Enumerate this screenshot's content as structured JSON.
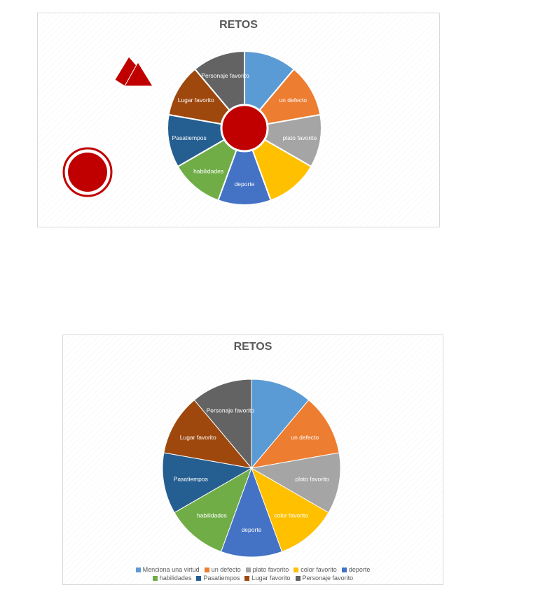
{
  "chart_data": [
    {
      "type": "pie",
      "variant": "wheel-with-center-disk",
      "title": "RETOS",
      "categories": [
        "Menciona una virtud",
        "un defecto",
        "plato favorito",
        "color favorito",
        "deporte",
        "habilidades",
        "Pasatiempos",
        "Lugar favorito",
        "Personaje favorito"
      ],
      "values": [
        1,
        1,
        1,
        1,
        1,
        1,
        1,
        1,
        1
      ],
      "slice_labels": [
        "",
        "un defecto",
        "plato favorito",
        "",
        "deporte",
        "habilidades",
        "Pasatiempos",
        "Lugar favorito",
        "Personaje favorito"
      ],
      "colors": [
        "#5b9bd5",
        "#ed7d31",
        "#a5a5a5",
        "#ffc000",
        "#4472c4",
        "#70ad47",
        "#255e91",
        "#9e480e",
        "#636363"
      ],
      "center_color": "#c00000",
      "decor_color": "#c00000",
      "legend": false
    },
    {
      "type": "pie",
      "title": "RETOS",
      "categories": [
        "Menciona una virtud",
        "un defecto",
        "plato favorito",
        "color favorito",
        "deporte",
        "habilidades",
        "Pasatiempos",
        "Lugar favorito",
        "Personaje favorito"
      ],
      "values": [
        1,
        1,
        1,
        1,
        1,
        1,
        1,
        1,
        1
      ],
      "slice_labels": [
        "",
        "un defecto",
        "plato favorito",
        "color favorito",
        "deporte",
        "habilidades",
        "Pasatiempos",
        "Lugar favorito",
        "Personaje favorito"
      ],
      "colors": [
        "#5b9bd5",
        "#ed7d31",
        "#a5a5a5",
        "#ffc000",
        "#4472c4",
        "#70ad47",
        "#255e91",
        "#9e480e",
        "#636363"
      ],
      "legend": true,
      "legend_position": "bottom",
      "legend_rows": [
        [
          0,
          1,
          2,
          3,
          4
        ],
        [
          5,
          6,
          7,
          8
        ]
      ]
    }
  ]
}
